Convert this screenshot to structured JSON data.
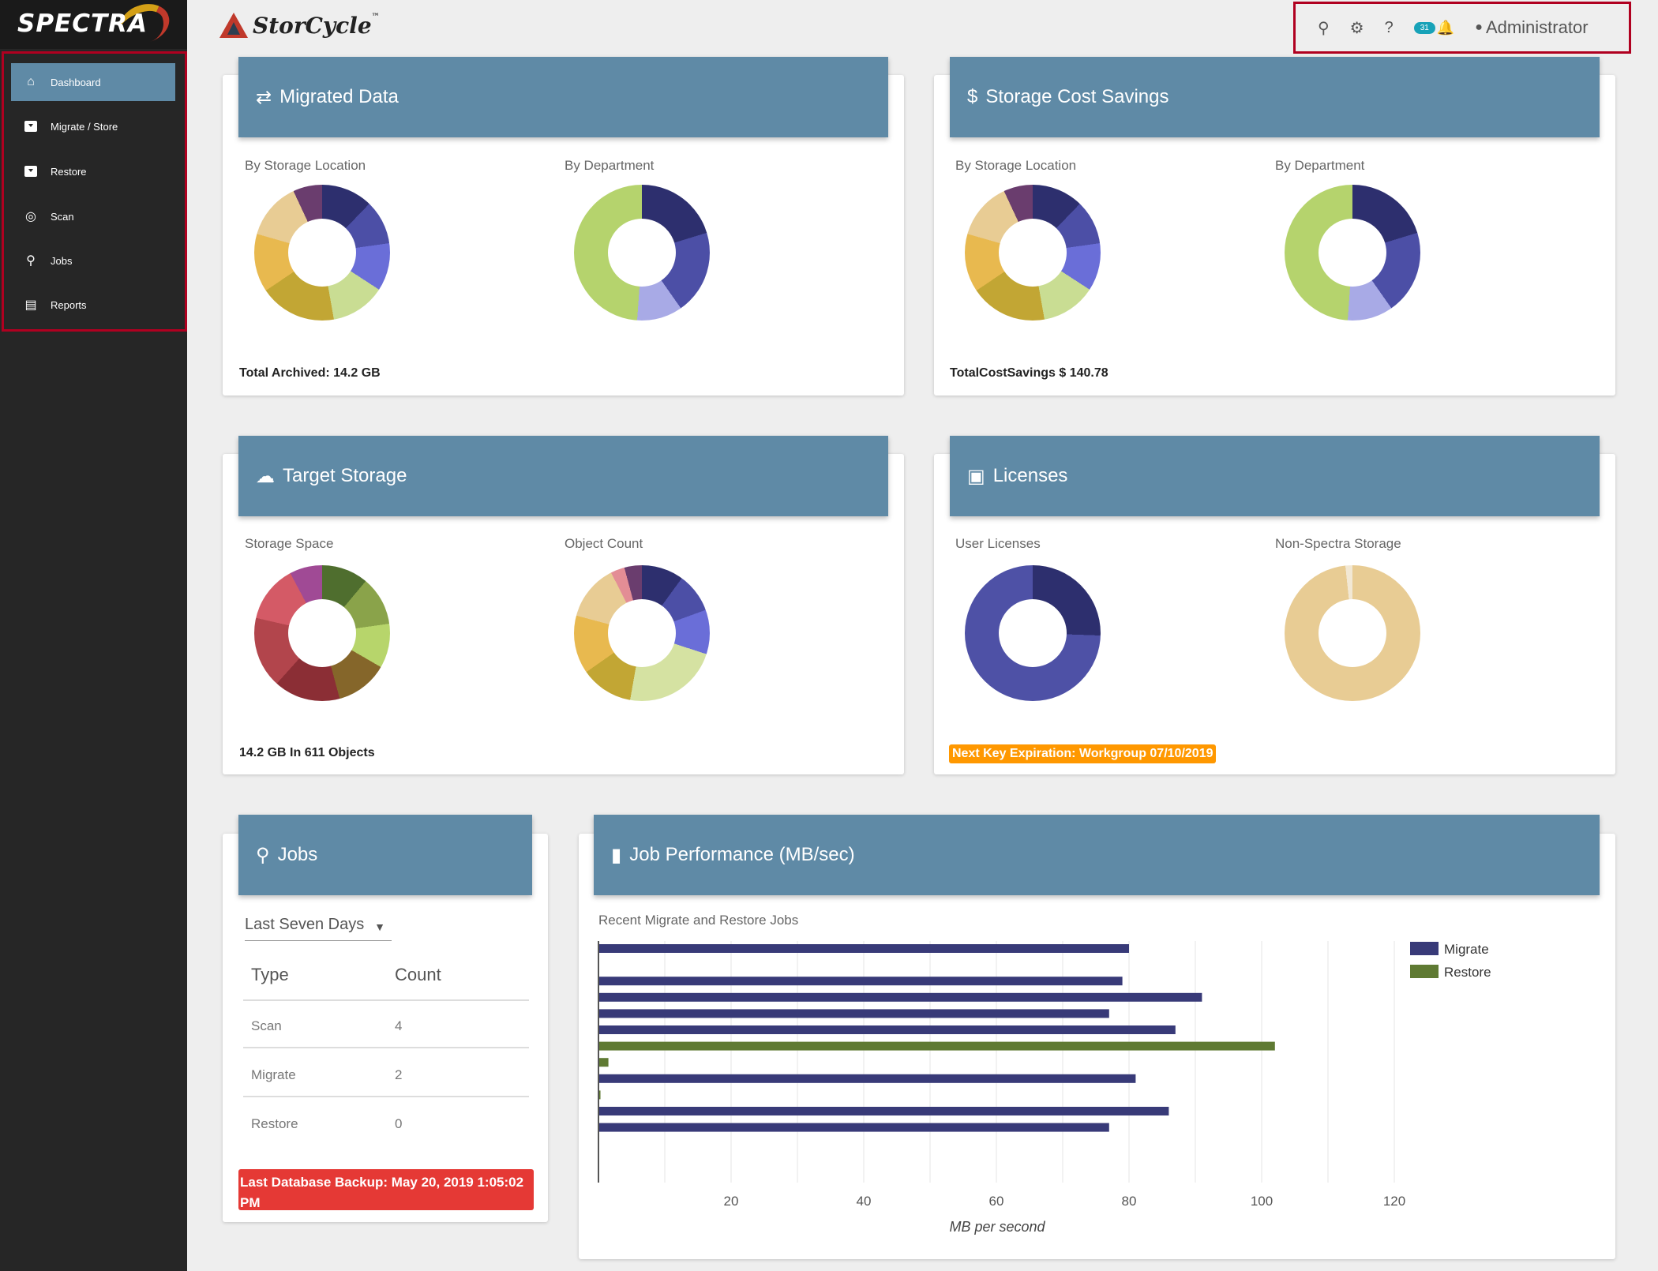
{
  "app": {
    "vendor_logo": "SPECTRA",
    "product": "StorCycle",
    "trademark": "™"
  },
  "sidebar": {
    "items": [
      {
        "label": "Dashboard",
        "icon": "home-icon"
      },
      {
        "label": "Migrate / Store",
        "icon": "archive-icon"
      },
      {
        "label": "Restore",
        "icon": "restore-icon"
      },
      {
        "label": "Scan",
        "icon": "scan-icon"
      },
      {
        "label": "Jobs",
        "icon": "jobs-icon"
      },
      {
        "label": "Reports",
        "icon": "reports-icon"
      }
    ],
    "active": "Dashboard"
  },
  "topbar": {
    "notification_count": "31",
    "user": "Administrator"
  },
  "cards": {
    "migrated": {
      "title": "Migrated Data",
      "left_label": "By Storage Location",
      "right_label": "By Department",
      "footer": "Total Archived: 14.2 GB"
    },
    "savings": {
      "title": "Storage Cost Savings",
      "left_label": "By Storage Location",
      "right_label": "By Department",
      "footer": "TotalCostSavings $ 140.78"
    },
    "target": {
      "title": "Target Storage",
      "left_label": "Storage Space",
      "right_label": "Object Count",
      "footer": "14.2 GB In 611 Objects"
    },
    "licenses": {
      "title": "Licenses",
      "left_label": "User Licenses",
      "right_label": "Non-Spectra Storage",
      "footer": "Next Key Expiration: Workgroup 07/10/2019"
    },
    "jobs": {
      "title": "Jobs",
      "range": "Last Seven Days",
      "col_type": "Type",
      "col_count": "Count",
      "rows": [
        {
          "type": "Scan",
          "count": "4"
        },
        {
          "type": "Migrate",
          "count": "2"
        },
        {
          "type": "Restore",
          "count": "0"
        }
      ],
      "backup": "Last Database Backup: May 20, 2019 1:05:02 PM"
    },
    "performance": {
      "title": "Job Performance (MB/sec)",
      "subtitle": "Recent Migrate and Restore Jobs"
    }
  },
  "colors": {
    "header": "#5f8aa6",
    "sidebar": "#262626",
    "migrate": "#383a78",
    "restore": "#5f7a33",
    "warning": "#ff9800",
    "danger": "#e53935"
  },
  "chart_data": {
    "type": "bar",
    "orientation": "horizontal",
    "xlabel": "MB per second",
    "ylabel": "",
    "xlim": [
      0,
      120
    ],
    "xticks": [
      20,
      40,
      60,
      80,
      100,
      120
    ],
    "legend": "top-right",
    "series": [
      {
        "name": "Migrate",
        "values": [
          80,
          null,
          79,
          91,
          77,
          87,
          null,
          null,
          81,
          null,
          86,
          77
        ]
      },
      {
        "name": "Restore",
        "values": [
          null,
          null,
          null,
          null,
          null,
          null,
          102,
          1.5,
          null,
          0.3,
          null,
          null
        ]
      }
    ]
  }
}
